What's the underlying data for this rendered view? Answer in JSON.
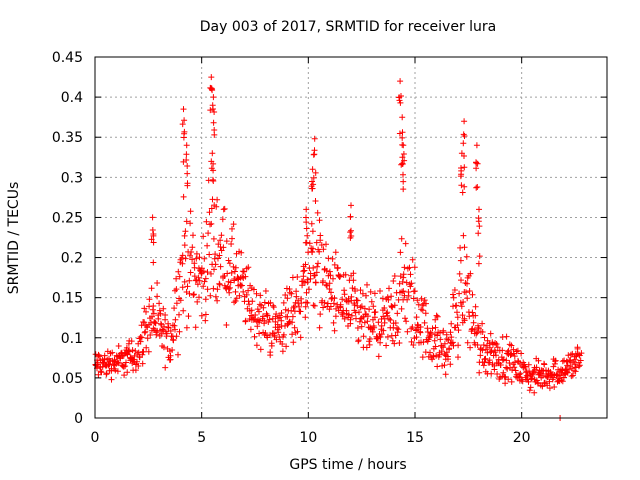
{
  "chart_data": {
    "type": "scatter",
    "title": "Day 003 of 2017, SRMTID for receiver lura",
    "xlabel": "GPS time / hours",
    "ylabel": "SRMTID / TECUs",
    "xlim": [
      0,
      24
    ],
    "ylim": [
      0,
      0.45
    ],
    "x_ticks": [
      0,
      5,
      10,
      15,
      20
    ],
    "x_tick_labels": [
      "0",
      "5",
      "10",
      "15",
      "20"
    ],
    "y_ticks": [
      0,
      0.05,
      0.1,
      0.15,
      0.2,
      0.25,
      0.3,
      0.35,
      0.4,
      0.45
    ],
    "y_tick_labels": [
      "0",
      "0.05",
      "0.1",
      "0.15",
      "0.2",
      "0.25",
      "0.3",
      "0.35",
      "0.4",
      "0.45"
    ],
    "grid": true,
    "marker": "+",
    "series": [
      {
        "name": "SRMTID",
        "color": "#ff0000",
        "profile": [
          [
            0.0,
            0.065,
            0.025
          ],
          [
            1.0,
            0.07,
            0.025
          ],
          [
            2.0,
            0.08,
            0.03
          ],
          [
            2.6,
            0.13,
            0.06
          ],
          [
            3.5,
            0.09,
            0.04
          ],
          [
            4.2,
            0.2,
            0.1
          ],
          [
            5.0,
            0.17,
            0.07
          ],
          [
            5.5,
            0.22,
            0.11
          ],
          [
            6.5,
            0.18,
            0.07
          ],
          [
            7.5,
            0.13,
            0.05
          ],
          [
            8.5,
            0.11,
            0.05
          ],
          [
            9.5,
            0.14,
            0.06
          ],
          [
            10.3,
            0.2,
            0.09
          ],
          [
            11.0,
            0.16,
            0.07
          ],
          [
            12.5,
            0.12,
            0.06
          ],
          [
            13.5,
            0.11,
            0.05
          ],
          [
            14.5,
            0.16,
            0.1
          ],
          [
            15.5,
            0.11,
            0.05
          ],
          [
            16.5,
            0.08,
            0.04
          ],
          [
            17.3,
            0.17,
            0.1
          ],
          [
            18.0,
            0.09,
            0.05
          ],
          [
            19.5,
            0.07,
            0.03
          ],
          [
            20.5,
            0.05,
            0.025
          ],
          [
            22.0,
            0.06,
            0.025
          ],
          [
            22.8,
            0.075,
            0.03
          ]
        ],
        "peaks": [
          [
            4.15,
            0.385
          ],
          [
            4.3,
            0.34
          ],
          [
            5.45,
            0.425
          ],
          [
            5.55,
            0.4
          ],
          [
            5.5,
            0.33
          ],
          [
            10.3,
            0.348
          ],
          [
            10.2,
            0.31
          ],
          [
            14.3,
            0.42
          ],
          [
            14.4,
            0.375
          ],
          [
            14.45,
            0.34
          ],
          [
            17.3,
            0.37
          ],
          [
            17.2,
            0.33
          ],
          [
            17.9,
            0.34
          ],
          [
            18.0,
            0.26
          ],
          [
            2.7,
            0.25
          ],
          [
            12.0,
            0.265
          ],
          [
            9.9,
            0.26
          ]
        ],
        "point_count": 1150,
        "outliers": [
          [
            21.8,
            0.0
          ]
        ]
      }
    ]
  }
}
